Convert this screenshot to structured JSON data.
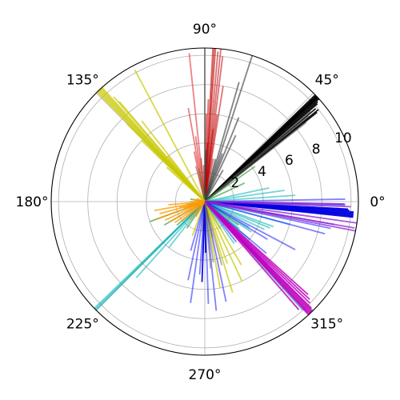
{
  "chart_data": {
    "type": "polar_line",
    "title": "",
    "theta_unit": "degrees",
    "r_range": [
      0,
      10.5
    ],
    "grid": true,
    "angular_ticks": [
      {
        "angle": 0,
        "label": "0°"
      },
      {
        "angle": 45,
        "label": "45°"
      },
      {
        "angle": 90,
        "label": "90°"
      },
      {
        "angle": 135,
        "label": "135°"
      },
      {
        "angle": 180,
        "label": "180°"
      },
      {
        "angle": 225,
        "label": "225°"
      },
      {
        "angle": 270,
        "label": "270°"
      },
      {
        "angle": 315,
        "label": "315°"
      }
    ],
    "radial_ticks": [
      {
        "value": 2,
        "label": "2"
      },
      {
        "value": 4,
        "label": "4"
      },
      {
        "value": 6,
        "label": "6"
      },
      {
        "value": 8,
        "label": "8"
      },
      {
        "value": 10,
        "label": "10"
      }
    ],
    "radial_label_angle": 22.5,
    "series": [
      {
        "color": "#c00000",
        "alpha": 0.55,
        "segments": [
          [
            84,
            10.5
          ],
          [
            86,
            10.5
          ],
          [
            86.5,
            10.5
          ],
          [
            87,
            10.5
          ],
          [
            85,
            10.3
          ],
          [
            83,
            10
          ],
          [
            82,
            6
          ],
          [
            81,
            8
          ],
          [
            88,
            7
          ],
          [
            89,
            6
          ],
          [
            83.5,
            5
          ],
          [
            87.5,
            4
          ],
          [
            79,
            3
          ],
          [
            92,
            2.5
          ],
          [
            95,
            3
          ]
        ]
      },
      {
        "color": "#e03030",
        "alpha": 0.6,
        "segments": [
          [
            96,
            10.2
          ],
          [
            100,
            6.5
          ],
          [
            102,
            3.5
          ],
          [
            104,
            2.5
          ],
          [
            98,
            4.5
          ]
        ]
      },
      {
        "color": "#404040",
        "alpha": 0.65,
        "segments": [
          [
            72,
            10.5
          ],
          [
            74,
            8.5
          ],
          [
            68,
            6.2
          ],
          [
            65,
            5
          ],
          [
            70,
            3.5
          ],
          [
            76,
            3
          ],
          [
            90,
            10.5
          ],
          [
            88.5,
            3.5
          ],
          [
            60,
            2.5
          ]
        ]
      },
      {
        "color": "#000000",
        "alpha": 0.9,
        "segments": [
          [
            42,
            10.5
          ],
          [
            42.5,
            10.5
          ],
          [
            43,
            10.5
          ],
          [
            43.5,
            10.5
          ],
          [
            44,
            10.5
          ],
          [
            41,
            10.2
          ],
          [
            39,
            10
          ],
          [
            38.5,
            9.8
          ],
          [
            40,
            9.9
          ],
          [
            41.5,
            10.3
          ],
          [
            43.3,
            10.5
          ],
          [
            42.7,
            10.5
          ]
        ]
      },
      {
        "color": "#505050",
        "alpha": 0.6,
        "segments": [
          [
            40.5,
            9.5
          ],
          [
            39.5,
            9.2
          ],
          [
            38,
            8.8
          ]
        ]
      },
      {
        "color": "#3a9a3a",
        "alpha": 0.65,
        "segments": [
          [
            35,
            4.2
          ],
          [
            25,
            3
          ],
          [
            100,
            2.3
          ],
          [
            200,
            4
          ],
          [
            210,
            3.2
          ],
          [
            220,
            2.5
          ],
          [
            236,
            2.2
          ],
          [
            190,
            1.2
          ],
          [
            170,
            1.0
          ],
          [
            300,
            2.2
          ],
          [
            325,
            2.8
          ]
        ]
      },
      {
        "color": "#c8c800",
        "alpha": 0.7,
        "segments": [
          [
            132,
            10.5
          ],
          [
            132.5,
            10.5
          ],
          [
            133,
            10.5
          ],
          [
            133.5,
            10.5
          ],
          [
            134,
            10.5
          ],
          [
            134.5,
            10.5
          ],
          [
            131,
            9.5
          ],
          [
            130.5,
            9
          ],
          [
            135,
            7.5
          ],
          [
            136,
            6
          ],
          [
            128,
            7
          ],
          [
            118,
            10.2
          ],
          [
            129,
            4
          ],
          [
            138,
            3.5
          ],
          [
            280,
            6
          ],
          [
            287,
            6.5
          ],
          [
            295,
            6
          ],
          [
            300,
            5
          ],
          [
            290,
            4.5
          ],
          [
            250,
            2.5
          ],
          [
            265,
            2
          ]
        ]
      },
      {
        "color": "#00b0b0",
        "alpha": 0.55,
        "segments": [
          [
            4,
            6.2
          ],
          [
            8,
            5.5
          ],
          [
            12,
            4.5
          ],
          [
            355,
            6.5
          ],
          [
            350,
            5.5
          ],
          [
            345,
            6
          ],
          [
            340,
            5
          ],
          [
            338,
            4.8
          ],
          [
            335,
            4.5
          ],
          [
            330,
            3.5
          ],
          [
            327,
            3.8
          ],
          [
            322,
            3
          ],
          [
            318,
            2.5
          ],
          [
            320,
            4
          ],
          [
            315,
            3
          ],
          [
            305,
            3.5
          ],
          [
            312,
            10
          ],
          [
            313,
            10.3
          ],
          [
            224,
            10.5
          ],
          [
            224.5,
            10.5
          ],
          [
            225,
            10.5
          ],
          [
            228,
            7
          ],
          [
            232,
            4
          ]
        ]
      },
      {
        "color": "#1a1aff",
        "alpha": 0.55,
        "segments": [
          [
            1,
            9.6
          ],
          [
            359,
            9.6
          ],
          [
            358.5,
            9.6
          ],
          [
            357,
            9.3
          ],
          [
            355,
            9.2
          ],
          [
            350,
            9.0
          ],
          [
            348,
            8.8
          ],
          [
            345,
            8.5
          ],
          [
            332,
            7.0
          ],
          [
            329,
            5.0
          ],
          [
            320,
            5.5
          ],
          [
            308,
            3.5
          ],
          [
            272,
            7
          ],
          [
            276,
            7.5
          ],
          [
            282,
            7
          ],
          [
            266,
            5
          ],
          [
            262,
            7
          ],
          [
            258,
            5.5
          ],
          [
            254,
            3.5
          ],
          [
            268,
            4
          ]
        ]
      },
      {
        "color": "#0000e0",
        "alpha": 0.95,
        "segments": [
          [
            354,
            10.2
          ],
          [
            354.5,
            10.2
          ],
          [
            355,
            10.2
          ],
          [
            355.5,
            10.2
          ],
          [
            356,
            10.2
          ],
          [
            356.5,
            9.9
          ],
          [
            357,
            9.8
          ],
          [
            268,
            5.5
          ],
          [
            271,
            3.5
          ]
        ]
      },
      {
        "color": "#9020d0",
        "alpha": 0.75,
        "segments": [
          [
            352,
            10.5
          ],
          [
            349,
            10.5
          ],
          [
            350,
            10.4
          ],
          [
            358,
            10
          ],
          [
            359,
            9.5
          ]
        ]
      },
      {
        "color": "#c000c0",
        "alpha": 0.85,
        "segments": [
          [
            312.5,
            10.5
          ],
          [
            313,
            10.5
          ],
          [
            313.5,
            10.5
          ],
          [
            314,
            10.5
          ],
          [
            314.5,
            10.5
          ],
          [
            315,
            10.3
          ],
          [
            316,
            10
          ],
          [
            317,
            9.8
          ],
          [
            318,
            9.5
          ],
          [
            311,
            9.8
          ]
        ]
      },
      {
        "color": "#ff9900",
        "alpha": 0.75,
        "segments": [
          [
            190,
            3.5
          ],
          [
            195,
            3.2
          ],
          [
            200,
            3.5
          ],
          [
            205,
            3.0
          ],
          [
            210,
            2.7
          ],
          [
            215,
            2.5
          ],
          [
            185,
            2.5
          ],
          [
            193,
            1.8
          ],
          [
            198,
            1.5
          ],
          [
            220,
            2.0
          ],
          [
            230,
            1.6
          ],
          [
            240,
            1.2
          ],
          [
            180,
            1.0
          ],
          [
            170,
            0.8
          ],
          [
            160,
            0.6
          ]
        ]
      },
      {
        "color": "#6a6a6a",
        "alpha": 0.55,
        "segments": [
          [
            275,
            4.6
          ],
          [
            285,
            4.5
          ],
          [
            278,
            4.2
          ],
          [
            282,
            2.5
          ]
        ]
      }
    ]
  }
}
